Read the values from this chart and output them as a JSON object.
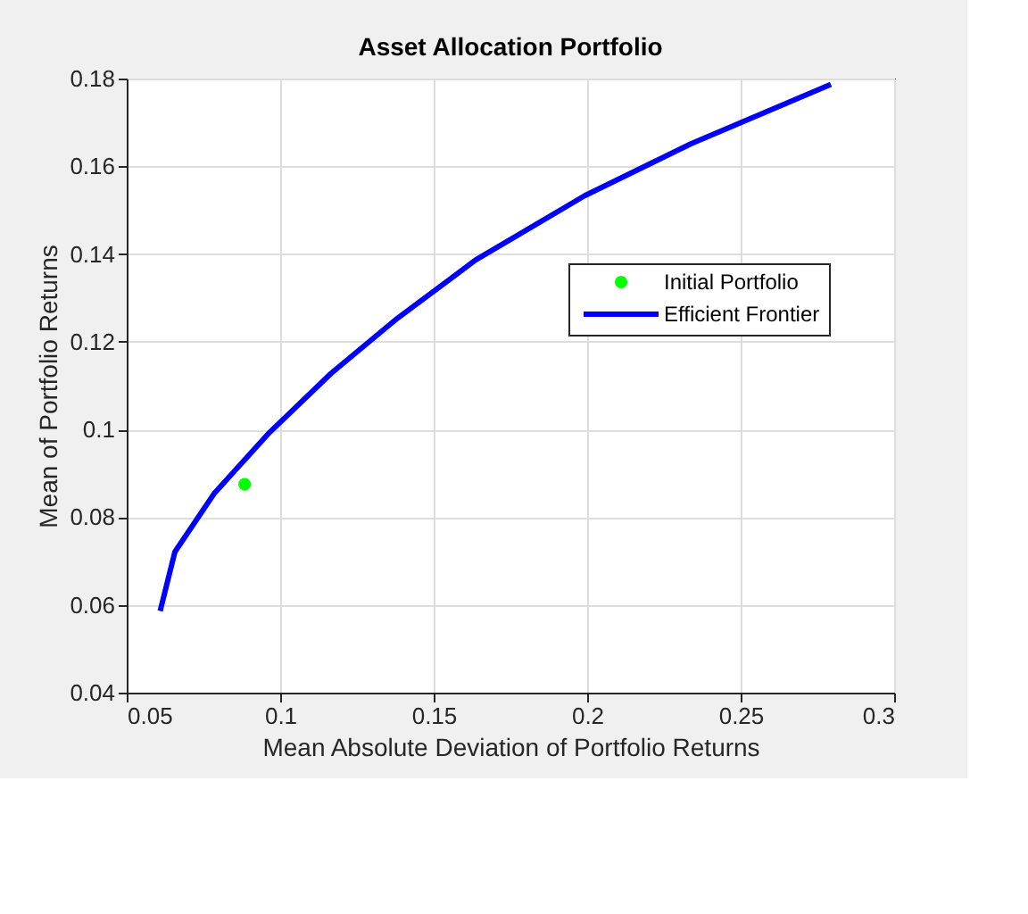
{
  "chart_data": {
    "type": "line",
    "title": "Asset Allocation Portfolio",
    "xlabel": "Mean Absolute Deviation of Portfolio Returns",
    "ylabel": "Mean of Portfolio Returns",
    "xlim": [
      0.05,
      0.3
    ],
    "xticks": [
      0.05,
      0.1,
      0.15,
      0.2,
      0.25,
      0.3
    ],
    "ylim": [
      0.04,
      0.18
    ],
    "yticks": [
      0.04,
      0.06,
      0.08,
      0.1,
      0.12,
      0.14,
      0.16,
      0.18
    ],
    "grid": true,
    "legend": "right",
    "series": [
      {
        "name": "Initial Portfolio",
        "type": "scatter",
        "marker": "circle",
        "color": "#00ff00",
        "x": [
          0.0884
        ],
        "values": [
          0.0875
        ]
      },
      {
        "name": "Efficient Frontier",
        "type": "line",
        "line_style": "solid",
        "color": "#0000ff",
        "x": [
          0.0609,
          0.0657,
          0.0786,
          0.0965,
          0.1166,
          0.1381,
          0.1636,
          0.1992,
          0.2337,
          0.2794
        ],
        "values": [
          0.0586,
          0.0721,
          0.0855,
          0.0993,
          0.1128,
          0.1253,
          0.1386,
          0.1533,
          0.1651,
          0.1787
        ]
      }
    ]
  }
}
